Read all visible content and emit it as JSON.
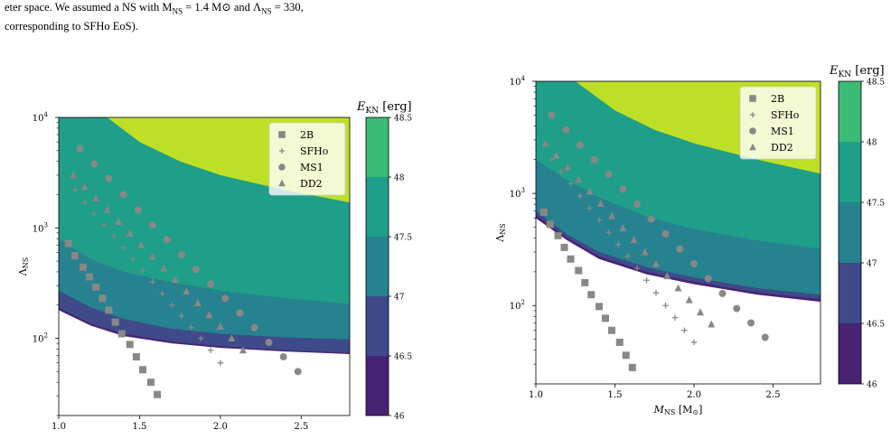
{
  "caption": {
    "line1": "eter space. We assumed a NS with M",
    "line1_sub": "NS",
    "line1_mid": " = 1.4 M",
    "line1_sun": "⊙",
    "line1_lam": " and Λ",
    "line1_lam_sub": "NS",
    "line1_end": " = 330,",
    "line2": "corresponding to SFHo EoS)."
  },
  "chart_data": [
    {
      "type": "contour",
      "panel": "left",
      "xlabel": "",
      "ylabel": "Λ",
      "ylabel_sub": "NS",
      "xlim": [
        1.0,
        2.8
      ],
      "ylim": [
        20,
        10000
      ],
      "yscale": "log",
      "xticks": [
        "1.0",
        "1.5",
        "2.0",
        "2.5"
      ],
      "yticks": [
        {
          "value": 100,
          "base": "10",
          "exp": "2"
        },
        {
          "value": 1000,
          "base": "10",
          "exp": "3"
        },
        {
          "value": 10000,
          "base": "10",
          "exp": "4"
        }
      ],
      "colorbar": {
        "label": "E",
        "label_sub": "KN",
        "label_unit": " [erg]",
        "levels": [
          "46",
          "46.5",
          "47",
          "47.5",
          "48",
          "48.5"
        ],
        "colors": [
          "#482374",
          "#3e4a89",
          "#26828e",
          "#1f9e89",
          "#3cbb75",
          "#bddf26"
        ]
      },
      "boundaries": [
        {
          "level": "46",
          "points": [
            [
              1.0,
              180
            ],
            [
              1.2,
              130
            ],
            [
              1.4,
              105
            ],
            [
              1.7,
              90
            ],
            [
              2.0,
              82
            ],
            [
              2.4,
              76
            ],
            [
              2.8,
              72
            ]
          ]
        },
        {
          "level": "46.5",
          "points": [
            [
              1.0,
              190
            ],
            [
              1.2,
              135
            ],
            [
              1.4,
              110
            ],
            [
              1.7,
              93
            ],
            [
              2.0,
              85
            ],
            [
              2.4,
              78
            ],
            [
              2.8,
              74
            ]
          ]
        },
        {
          "level": "47",
          "points": [
            [
              1.0,
              270
            ],
            [
              1.2,
              190
            ],
            [
              1.4,
              150
            ],
            [
              1.7,
              122
            ],
            [
              2.0,
              110
            ],
            [
              2.4,
              102
            ],
            [
              2.8,
              98
            ]
          ]
        },
        {
          "level": "47.5",
          "points": [
            [
              1.0,
              800
            ],
            [
              1.2,
              520
            ],
            [
              1.4,
              400
            ],
            [
              1.7,
              320
            ],
            [
              2.0,
              270
            ],
            [
              2.4,
              230
            ],
            [
              2.8,
              205
            ]
          ]
        },
        {
          "level": "48",
          "points": [
            [
              1.3,
              10000
            ],
            [
              1.5,
              6000
            ],
            [
              1.75,
              4000
            ],
            [
              2.0,
              3000
            ],
            [
              2.4,
              2200
            ],
            [
              2.8,
              1700
            ]
          ]
        }
      ],
      "series": [
        {
          "name": "2B",
          "marker": "square",
          "x": [
            1.06,
            1.1,
            1.15,
            1.19,
            1.23,
            1.27,
            1.31,
            1.35,
            1.39,
            1.44,
            1.48,
            1.52,
            1.57,
            1.61
          ],
          "y": [
            720,
            560,
            440,
            360,
            290,
            230,
            180,
            140,
            110,
            88,
            68,
            52,
            40,
            31
          ]
        },
        {
          "name": "SFHo",
          "marker": "plus",
          "x": [
            1.1,
            1.16,
            1.22,
            1.28,
            1.34,
            1.4,
            1.46,
            1.52,
            1.58,
            1.64,
            1.7,
            1.76,
            1.82,
            1.88,
            1.94,
            2.0
          ],
          "y": [
            2200,
            1700,
            1330,
            1060,
            840,
            660,
            520,
            410,
            325,
            255,
            200,
            160,
            125,
            100,
            78,
            60
          ]
        },
        {
          "name": "MS1",
          "marker": "circle",
          "x": [
            1.13,
            1.22,
            1.31,
            1.4,
            1.49,
            1.58,
            1.67,
            1.76,
            1.85,
            1.94,
            2.03,
            2.12,
            2.21,
            2.3,
            2.39,
            2.48
          ],
          "y": [
            5200,
            3800,
            2800,
            2000,
            1450,
            1060,
            780,
            570,
            420,
            310,
            230,
            170,
            125,
            92,
            68,
            50
          ]
        },
        {
          "name": "DD2",
          "marker": "triangle",
          "x": [
            1.09,
            1.16,
            1.23,
            1.3,
            1.37,
            1.44,
            1.51,
            1.58,
            1.65,
            1.72,
            1.79,
            1.86,
            1.93,
            2.0,
            2.07,
            2.14
          ],
          "y": [
            3000,
            2350,
            1850,
            1450,
            1130,
            890,
            700,
            550,
            430,
            340,
            265,
            208,
            163,
            128,
            100,
            78
          ]
        }
      ],
      "legend": [
        "2B",
        "SFHo",
        "MS1",
        "DD2"
      ],
      "legend_position": "upper right"
    },
    {
      "type": "contour",
      "panel": "right",
      "xlabel": "M",
      "xlabel_sub": "NS",
      "xlabel_unit": " [M",
      "xlabel_sun": "⊙",
      "xlabel_close": "]",
      "ylabel": "Λ",
      "ylabel_sub": "NS",
      "xlim": [
        1.0,
        2.8
      ],
      "ylim": [
        20,
        10000
      ],
      "yscale": "log",
      "xticks": [
        "1.0",
        "1.5",
        "2.0",
        "2.5"
      ],
      "yticks": [
        {
          "value": 100,
          "base": "10",
          "exp": "2"
        },
        {
          "value": 1000,
          "base": "10",
          "exp": "3"
        },
        {
          "value": 10000,
          "base": "10",
          "exp": "4"
        }
      ],
      "colorbar": {
        "label": "E",
        "label_sub": "KN",
        "label_unit": " [erg]",
        "levels": [
          "46",
          "46.5",
          "47",
          "47.5",
          "48",
          "48.5"
        ],
        "colors": [
          "#482374",
          "#3e4a89",
          "#26828e",
          "#1f9e89",
          "#3cbb75",
          "#bddf26"
        ]
      },
      "boundaries": [
        {
          "level": "46",
          "points": [
            [
              1.0,
              600
            ],
            [
              1.2,
              380
            ],
            [
              1.4,
              260
            ],
            [
              1.7,
              190
            ],
            [
              2.0,
              155
            ],
            [
              2.4,
              125
            ],
            [
              2.8,
              108
            ]
          ]
        },
        {
          "level": "46.5",
          "points": [
            [
              1.0,
              640
            ],
            [
              1.2,
              400
            ],
            [
              1.4,
              275
            ],
            [
              1.7,
              200
            ],
            [
              2.0,
              163
            ],
            [
              2.4,
              131
            ],
            [
              2.8,
              114
            ]
          ]
        },
        {
          "level": "47",
          "points": [
            [
              1.0,
              700
            ],
            [
              1.2,
              430
            ],
            [
              1.4,
              300
            ],
            [
              1.7,
              220
            ],
            [
              2.0,
              178
            ],
            [
              2.4,
              143
            ],
            [
              2.8,
              125
            ]
          ]
        },
        {
          "level": "47.5",
          "points": [
            [
              1.0,
              2000
            ],
            [
              1.2,
              1300
            ],
            [
              1.4,
              920
            ],
            [
              1.7,
              620
            ],
            [
              2.0,
              480
            ],
            [
              2.4,
              380
            ],
            [
              2.8,
              320
            ]
          ]
        },
        {
          "level": "48",
          "points": [
            [
              1.25,
              10000
            ],
            [
              1.5,
              5500
            ],
            [
              1.75,
              3700
            ],
            [
              2.0,
              2800
            ],
            [
              2.4,
              2000
            ],
            [
              2.8,
              1500
            ]
          ]
        }
      ],
      "series": [
        {
          "name": "2B",
          "marker": "square",
          "x": [
            1.05,
            1.09,
            1.14,
            1.18,
            1.22,
            1.27,
            1.31,
            1.35,
            1.4,
            1.44,
            1.48,
            1.53,
            1.57,
            1.61
          ],
          "y": [
            680,
            530,
            420,
            330,
            260,
            205,
            160,
            125,
            98,
            77,
            60,
            47,
            36,
            28
          ]
        },
        {
          "name": "SFHo",
          "marker": "plus",
          "x": [
            1.1,
            1.16,
            1.22,
            1.28,
            1.34,
            1.4,
            1.46,
            1.52,
            1.58,
            1.64,
            1.7,
            1.76,
            1.82,
            1.88,
            1.94,
            2.0
          ],
          "y": [
            2000,
            1560,
            1220,
            950,
            740,
            580,
            450,
            350,
            275,
            215,
            168,
            130,
            100,
            78,
            60,
            47
          ]
        },
        {
          "name": "MS1",
          "marker": "circle",
          "x": [
            1.1,
            1.19,
            1.28,
            1.37,
            1.46,
            1.55,
            1.64,
            1.73,
            1.82,
            1.91,
            2.0,
            2.09,
            2.18,
            2.27,
            2.36,
            2.45
          ],
          "y": [
            5000,
            3700,
            2700,
            2000,
            1480,
            1090,
            800,
            590,
            435,
            320,
            236,
            174,
            128,
            94,
            70,
            52
          ]
        },
        {
          "name": "DD2",
          "marker": "triangle",
          "x": [
            1.06,
            1.13,
            1.2,
            1.27,
            1.34,
            1.41,
            1.48,
            1.55,
            1.62,
            1.69,
            1.76,
            1.83,
            1.9,
            1.97,
            2.04,
            2.11
          ],
          "y": [
            2800,
            2180,
            1700,
            1330,
            1040,
            810,
            630,
            490,
            385,
            300,
            235,
            183,
            143,
            112,
            87,
            68
          ]
        }
      ],
      "legend": [
        "2B",
        "SFHo",
        "MS1",
        "DD2"
      ],
      "legend_position": "upper right"
    }
  ]
}
